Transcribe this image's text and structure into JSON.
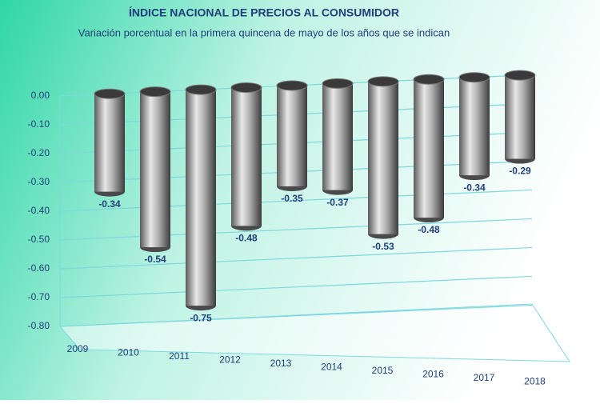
{
  "chart_data": {
    "type": "bar",
    "title": "ÍNDICE NACIONAL DE PRECIOS AL CONSUMIDOR",
    "subtitle": "Variación porcentual en la primera quincena de mayo de los años que se indican",
    "categories": [
      "2009",
      "2010",
      "2011",
      "2012",
      "2013",
      "2014",
      "2015",
      "2016",
      "2017",
      "2018"
    ],
    "values": [
      -0.34,
      -0.54,
      -0.75,
      -0.48,
      -0.35,
      -0.37,
      -0.53,
      -0.48,
      -0.34,
      -0.29
    ],
    "color": "#8c8c8c",
    "ylim": [
      -0.8,
      0
    ],
    "yticks": [
      {
        "value": 0,
        "label": "0.00"
      },
      {
        "value": -0.1,
        "label": "-0.10"
      },
      {
        "value": -0.2,
        "label": "-0.20"
      },
      {
        "value": -0.3,
        "label": "-0.30"
      },
      {
        "value": -0.4,
        "label": "-0.40"
      },
      {
        "value": -0.5,
        "label": "-0.50"
      },
      {
        "value": -0.6,
        "label": "-0.60"
      },
      {
        "value": -0.7,
        "label": "-0.70"
      },
      {
        "value": -0.8,
        "label": "-0.80"
      }
    ],
    "grid": true
  }
}
